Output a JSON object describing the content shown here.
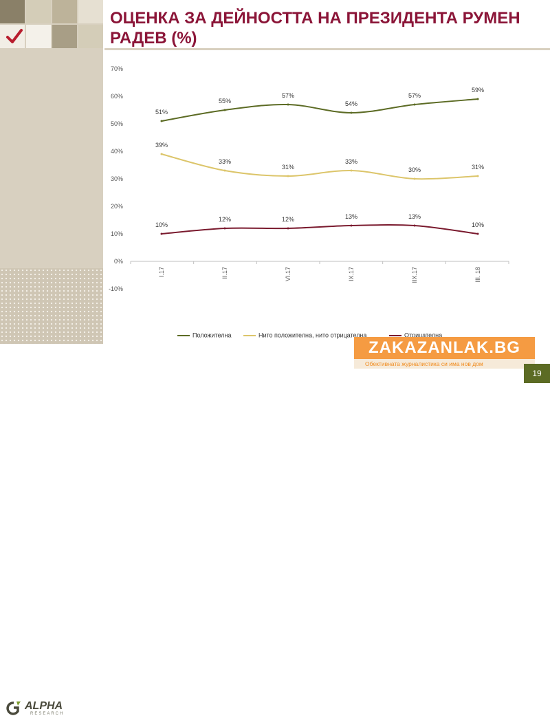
{
  "slide": {
    "title": "ОЦЕНКА ЗА ДЕЙНОСТТА НА ПРЕЗИДЕНТА РУМЕН РАДЕВ (%)",
    "page_number": "19",
    "logo_text": "ALPHA",
    "logo_subtext": "RESEARCH"
  },
  "watermark": {
    "site": "ZAKAZANLAK.BG",
    "tagline": "Обективната журналистика си има нов дом"
  },
  "colors": {
    "title": "#8b1538",
    "positive": "#5c6b24",
    "neutral": "#dcc56a",
    "negative": "#7a1a2e",
    "sidebar": "#d8d0c0"
  },
  "chart_data": {
    "type": "line",
    "categories": [
      "I.17",
      "II.17",
      "VI.17",
      "IX.17",
      "IIX.17",
      "III. 18"
    ],
    "series": [
      {
        "name": "Положителна",
        "values": [
          51,
          55,
          57,
          54,
          57,
          59
        ],
        "labels": [
          "51%",
          "55%",
          "57%",
          "54%",
          "57%",
          "59%"
        ]
      },
      {
        "name": "Нито положителна, нито отрицателна",
        "values": [
          39,
          33,
          31,
          33,
          30,
          31
        ],
        "labels": [
          "39%",
          "33%",
          "31%",
          "33%",
          "30%",
          "31%"
        ]
      },
      {
        "name": "Отрицателна",
        "values": [
          10,
          12,
          12,
          13,
          13,
          10
        ],
        "labels": [
          "10%",
          "12%",
          "12%",
          "13%",
          "13%",
          "10%"
        ]
      }
    ],
    "y_ticks": [
      "-10%",
      "0%",
      "10%",
      "20%",
      "30%",
      "40%",
      "50%",
      "60%",
      "70%"
    ],
    "ylim": [
      -10,
      70
    ],
    "grid": false,
    "legend_position": "bottom"
  }
}
